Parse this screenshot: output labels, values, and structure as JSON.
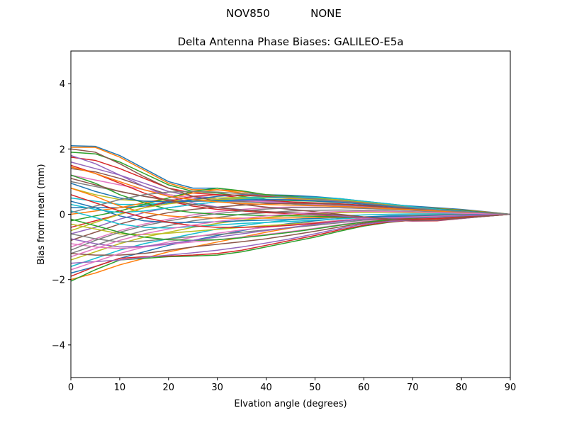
{
  "suptitle": {
    "antenna": "NOV850",
    "radome": "NONE"
  },
  "chart_data": {
    "type": "line",
    "title": "Delta Antenna Phase Biases: GALILEO-E5a",
    "xlabel": "Elvation angle (degrees)",
    "ylabel": "Bias from mean (mm)",
    "xlim": [
      0,
      90
    ],
    "ylim": [
      -5,
      5
    ],
    "xticks": [
      0,
      10,
      20,
      30,
      40,
      50,
      60,
      70,
      80,
      90
    ],
    "yticks": [
      -4,
      -2,
      0,
      2,
      4
    ],
    "ytick_labels": [
      "−4",
      "−2",
      "0",
      "2",
      "4"
    ],
    "grid": false,
    "legend": "none",
    "x": [
      0,
      5,
      10,
      15,
      20,
      25,
      30,
      35,
      40,
      45,
      50,
      55,
      60,
      65,
      70,
      75,
      80,
      85,
      90
    ],
    "colors": [
      "#1f77b4",
      "#ff7f0e",
      "#2ca02c",
      "#d62728",
      "#9467bd",
      "#8c564b",
      "#e377c2",
      "#7f7f7f",
      "#bcbd22",
      "#17becf"
    ],
    "series": [
      {
        "values": [
          2.1,
          2.08,
          1.8,
          1.4,
          1.0,
          0.8,
          0.8,
          0.7,
          0.55,
          0.5,
          0.45,
          0.4,
          0.35,
          0.3,
          0.25,
          0.2,
          0.15,
          0.08,
          0.0
        ]
      },
      {
        "values": [
          2.05,
          2.05,
          1.75,
          1.35,
          0.95,
          0.75,
          0.75,
          0.65,
          0.52,
          0.48,
          0.43,
          0.38,
          0.33,
          0.28,
          0.23,
          0.18,
          0.13,
          0.07,
          0.0
        ]
      },
      {
        "values": [
          1.9,
          1.85,
          1.6,
          1.25,
          0.9,
          0.7,
          0.65,
          0.55,
          0.45,
          0.42,
          0.4,
          0.36,
          0.32,
          0.27,
          0.22,
          0.17,
          0.12,
          0.06,
          0.0
        ]
      },
      {
        "values": [
          1.75,
          1.65,
          1.4,
          1.1,
          0.8,
          0.65,
          0.6,
          0.5,
          0.42,
          0.38,
          0.35,
          0.32,
          0.28,
          0.24,
          0.2,
          0.15,
          0.1,
          0.05,
          0.0
        ]
      },
      {
        "values": [
          1.6,
          1.4,
          1.2,
          0.95,
          0.7,
          0.55,
          0.5,
          0.45,
          0.4,
          0.35,
          0.3,
          0.27,
          0.24,
          0.2,
          0.17,
          0.13,
          0.09,
          0.05,
          0.0
        ]
      },
      {
        "values": [
          1.4,
          1.3,
          1.1,
          0.85,
          0.6,
          0.5,
          0.45,
          0.4,
          0.35,
          0.32,
          0.28,
          0.25,
          0.22,
          0.18,
          0.15,
          0.12,
          0.08,
          0.04,
          0.0
        ]
      },
      {
        "values": [
          1.2,
          1.05,
          0.9,
          0.75,
          0.6,
          0.5,
          0.45,
          0.42,
          0.38,
          0.34,
          0.3,
          0.26,
          0.22,
          0.19,
          0.15,
          0.12,
          0.08,
          0.04,
          0.0
        ]
      },
      {
        "values": [
          1.0,
          0.85,
          0.7,
          0.55,
          0.45,
          0.4,
          0.4,
          0.38,
          0.35,
          0.32,
          0.28,
          0.25,
          0.21,
          0.17,
          0.14,
          0.11,
          0.07,
          0.04,
          0.0
        ]
      },
      {
        "values": [
          0.8,
          0.6,
          0.45,
          0.4,
          0.4,
          0.45,
          0.5,
          0.52,
          0.52,
          0.5,
          0.45,
          0.4,
          0.33,
          0.26,
          0.2,
          0.14,
          0.09,
          0.04,
          0.0
        ]
      },
      {
        "values": [
          0.5,
          0.4,
          0.3,
          0.3,
          0.35,
          0.4,
          0.45,
          0.5,
          0.55,
          0.55,
          0.52,
          0.46,
          0.38,
          0.3,
          0.22,
          0.15,
          0.09,
          0.04,
          0.0
        ]
      },
      {
        "values": [
          0.2,
          0.2,
          0.2,
          0.25,
          0.35,
          0.45,
          0.55,
          0.6,
          0.6,
          0.58,
          0.54,
          0.48,
          0.4,
          0.32,
          0.24,
          0.16,
          0.1,
          0.05,
          0.0
        ]
      },
      {
        "values": [
          0.0,
          0.1,
          0.2,
          0.35,
          0.5,
          0.65,
          0.75,
          0.7,
          0.6,
          0.55,
          0.5,
          0.44,
          0.36,
          0.28,
          0.2,
          0.14,
          0.08,
          0.04,
          0.0
        ]
      },
      {
        "values": [
          -0.2,
          -0.05,
          0.1,
          0.3,
          0.5,
          0.7,
          0.8,
          0.72,
          0.6,
          0.55,
          0.5,
          0.43,
          0.35,
          0.27,
          0.2,
          0.13,
          0.08,
          0.04,
          0.0
        ]
      },
      {
        "values": [
          -0.4,
          -0.2,
          0.0,
          0.2,
          0.4,
          0.55,
          0.6,
          0.58,
          0.55,
          0.52,
          0.48,
          0.42,
          0.35,
          0.27,
          0.19,
          0.13,
          0.08,
          0.04,
          0.0
        ]
      },
      {
        "values": [
          -0.6,
          -0.4,
          -0.15,
          0.05,
          0.2,
          0.3,
          0.38,
          0.42,
          0.45,
          0.45,
          0.42,
          0.38,
          0.32,
          0.25,
          0.18,
          0.12,
          0.07,
          0.03,
          0.0
        ]
      },
      {
        "values": [
          -0.8,
          -0.55,
          -0.3,
          -0.1,
          0.05,
          0.15,
          0.22,
          0.28,
          0.32,
          0.34,
          0.33,
          0.3,
          0.26,
          0.21,
          0.16,
          0.11,
          0.06,
          0.03,
          0.0
        ]
      },
      {
        "values": [
          -1.0,
          -0.75,
          -0.5,
          -0.3,
          -0.15,
          -0.02,
          0.08,
          0.15,
          0.2,
          0.22,
          0.22,
          0.2,
          0.18,
          0.15,
          0.12,
          0.08,
          0.05,
          0.02,
          0.0
        ]
      },
      {
        "values": [
          -1.2,
          -0.95,
          -0.7,
          -0.5,
          -0.35,
          -0.2,
          -0.1,
          0.0,
          0.05,
          0.1,
          0.12,
          0.13,
          0.12,
          0.1,
          0.08,
          0.06,
          0.04,
          0.02,
          0.0
        ]
      },
      {
        "values": [
          -1.4,
          -1.15,
          -0.9,
          -0.7,
          -0.55,
          -0.4,
          -0.28,
          -0.18,
          -0.1,
          -0.03,
          0.02,
          0.05,
          0.06,
          0.06,
          0.05,
          0.04,
          0.03,
          0.01,
          0.0
        ]
      },
      {
        "values": [
          -1.6,
          -1.35,
          -1.1,
          -0.9,
          -0.75,
          -0.6,
          -0.45,
          -0.35,
          -0.25,
          -0.17,
          -0.1,
          -0.05,
          -0.02,
          0.0,
          0.01,
          0.01,
          0.01,
          0.0,
          0.0
        ]
      },
      {
        "values": [
          -1.8,
          -1.6,
          -1.35,
          -1.15,
          -0.95,
          -0.8,
          -0.65,
          -0.5,
          -0.38,
          -0.28,
          -0.2,
          -0.13,
          -0.08,
          -0.05,
          -0.03,
          -0.02,
          -0.01,
          0.0,
          0.0
        ]
      },
      {
        "values": [
          -2.0,
          -1.8,
          -1.55,
          -1.35,
          -1.15,
          -1.0,
          -0.85,
          -0.7,
          -0.55,
          -0.42,
          -0.3,
          -0.2,
          -0.13,
          -0.08,
          -0.05,
          -0.03,
          -0.02,
          -0.01,
          0.0
        ]
      },
      {
        "values": [
          -2.05,
          -1.7,
          -1.4,
          -1.35,
          -1.3,
          -1.28,
          -1.25,
          -1.15,
          -1.0,
          -0.85,
          -0.7,
          -0.52,
          -0.36,
          -0.25,
          -0.18,
          -0.12,
          -0.07,
          -0.03,
          0.0
        ]
      },
      {
        "values": [
          -1.9,
          -1.6,
          -1.35,
          -1.3,
          -1.28,
          -1.25,
          -1.2,
          -1.1,
          -0.95,
          -0.8,
          -0.65,
          -0.48,
          -0.34,
          -0.24,
          -0.18,
          -0.12,
          -0.07,
          -0.03,
          0.0
        ]
      },
      {
        "values": [
          -1.5,
          -1.45,
          -1.4,
          -1.32,
          -1.25,
          -1.18,
          -1.1,
          -1.0,
          -0.88,
          -0.75,
          -0.6,
          -0.44,
          -0.3,
          -0.22,
          -0.18,
          -0.13,
          -0.08,
          -0.04,
          0.0
        ]
      },
      {
        "values": [
          -1.2,
          -1.25,
          -1.25,
          -1.2,
          -1.1,
          -1.0,
          -0.92,
          -0.84,
          -0.75,
          -0.64,
          -0.52,
          -0.39,
          -0.27,
          -0.19,
          -0.15,
          -0.11,
          -0.07,
          -0.03,
          0.0
        ]
      },
      {
        "values": [
          -0.9,
          -1.0,
          -1.05,
          -1.0,
          -0.92,
          -0.85,
          -0.78,
          -0.7,
          -0.62,
          -0.53,
          -0.43,
          -0.32,
          -0.22,
          -0.17,
          -0.13,
          -0.1,
          -0.06,
          -0.03,
          0.0
        ]
      },
      {
        "values": [
          -0.6,
          -0.75,
          -0.85,
          -0.82,
          -0.75,
          -0.68,
          -0.62,
          -0.55,
          -0.48,
          -0.41,
          -0.34,
          -0.26,
          -0.18,
          -0.14,
          -0.11,
          -0.08,
          -0.05,
          -0.02,
          0.0
        ]
      },
      {
        "values": [
          -0.3,
          -0.45,
          -0.6,
          -0.62,
          -0.58,
          -0.52,
          -0.46,
          -0.4,
          -0.35,
          -0.3,
          -0.25,
          -0.19,
          -0.14,
          -0.11,
          -0.09,
          -0.07,
          -0.04,
          -0.02,
          0.0
        ]
      },
      {
        "values": [
          0.1,
          -0.1,
          -0.3,
          -0.4,
          -0.42,
          -0.38,
          -0.33,
          -0.28,
          -0.25,
          -0.22,
          -0.18,
          -0.14,
          -0.1,
          -0.08,
          -0.07,
          -0.05,
          -0.03,
          -0.01,
          0.0
        ]
      },
      {
        "values": [
          0.4,
          0.2,
          -0.05,
          -0.2,
          -0.25,
          -0.25,
          -0.23,
          -0.2,
          -0.18,
          -0.16,
          -0.13,
          -0.1,
          -0.08,
          -0.07,
          -0.06,
          -0.04,
          -0.03,
          -0.01,
          0.0
        ]
      },
      {
        "values": [
          0.8,
          0.55,
          0.25,
          0.05,
          -0.05,
          -0.1,
          -0.12,
          -0.12,
          -0.12,
          -0.11,
          -0.1,
          -0.09,
          -0.1,
          -0.14,
          -0.17,
          -0.15,
          -0.1,
          -0.05,
          0.0
        ]
      },
      {
        "values": [
          1.2,
          0.95,
          0.6,
          0.35,
          0.15,
          0.05,
          0.0,
          -0.02,
          -0.04,
          -0.05,
          -0.06,
          -0.08,
          -0.12,
          -0.17,
          -0.2,
          -0.18,
          -0.12,
          -0.06,
          0.0
        ]
      },
      {
        "values": [
          1.5,
          1.25,
          0.95,
          0.65,
          0.4,
          0.25,
          0.15,
          0.1,
          0.05,
          0.02,
          -0.02,
          -0.06,
          -0.12,
          -0.18,
          -0.21,
          -0.2,
          -0.13,
          -0.06,
          0.0
        ]
      },
      {
        "values": [
          1.8,
          1.55,
          1.2,
          0.85,
          0.55,
          0.35,
          0.22,
          0.14,
          0.08,
          0.04,
          0.0,
          -0.05,
          -0.11,
          -0.17,
          -0.2,
          -0.19,
          -0.13,
          -0.06,
          0.0
        ]
      },
      {
        "values": [
          2.0,
          1.9,
          1.55,
          1.15,
          0.8,
          0.55,
          0.4,
          0.3,
          0.22,
          0.15,
          0.08,
          0.0,
          -0.08,
          -0.15,
          -0.19,
          -0.18,
          -0.12,
          -0.06,
          0.0
        ]
      },
      {
        "values": [
          -1.7,
          -1.45,
          -1.2,
          -1.0,
          -0.85,
          -0.7,
          -0.58,
          -0.48,
          -0.4,
          -0.33,
          -0.26,
          -0.19,
          -0.13,
          -0.1,
          -0.08,
          -0.06,
          -0.04,
          -0.02,
          0.0
        ]
      },
      {
        "values": [
          -1.1,
          -0.8,
          -0.55,
          -0.35,
          -0.2,
          -0.08,
          0.02,
          0.1,
          0.16,
          0.2,
          0.21,
          0.2,
          0.18,
          0.15,
          0.12,
          0.09,
          0.06,
          0.03,
          0.0
        ]
      },
      {
        "values": [
          -0.5,
          -0.25,
          0.0,
          0.2,
          0.32,
          0.4,
          0.45,
          0.48,
          0.5,
          0.5,
          0.48,
          0.44,
          0.38,
          0.3,
          0.22,
          0.15,
          0.09,
          0.04,
          0.0
        ]
      },
      {
        "values": [
          0.3,
          0.15,
          0.05,
          0.1,
          0.2,
          0.3,
          0.38,
          0.45,
          0.5,
          0.52,
          0.52,
          0.48,
          0.4,
          0.32,
          0.23,
          0.15,
          0.09,
          0.04,
          0.0
        ]
      },
      {
        "values": [
          0.95,
          0.7,
          0.5,
          0.4,
          0.38,
          0.4,
          0.42,
          0.44,
          0.45,
          0.44,
          0.41,
          0.37,
          0.31,
          0.25,
          0.19,
          0.13,
          0.08,
          0.04,
          0.0
        ]
      },
      {
        "values": [
          1.45,
          1.25,
          1.0,
          0.75,
          0.55,
          0.45,
          0.38,
          0.33,
          0.3,
          0.28,
          0.26,
          0.24,
          0.21,
          0.17,
          0.14,
          0.1,
          0.07,
          0.03,
          0.0
        ]
      },
      {
        "values": [
          -0.15,
          -0.35,
          -0.55,
          -0.7,
          -0.78,
          -0.8,
          -0.78,
          -0.72,
          -0.64,
          -0.55,
          -0.45,
          -0.34,
          -0.24,
          -0.17,
          -0.12,
          -0.09,
          -0.06,
          -0.03,
          0.0
        ]
      },
      {
        "values": [
          0.6,
          0.35,
          0.1,
          -0.1,
          -0.25,
          -0.35,
          -0.4,
          -0.4,
          -0.38,
          -0.34,
          -0.28,
          -0.21,
          -0.15,
          -0.14,
          -0.15,
          -0.13,
          -0.09,
          -0.04,
          0.0
        ]
      },
      {
        "values": [
          -0.75,
          -0.9,
          -1.0,
          -0.98,
          -0.9,
          -0.8,
          -0.7,
          -0.6,
          -0.5,
          -0.4,
          -0.31,
          -0.22,
          -0.15,
          -0.12,
          -0.1,
          -0.08,
          -0.05,
          -0.02,
          0.0
        ]
      },
      {
        "values": [
          1.1,
          0.9,
          0.7,
          0.55,
          0.42,
          0.3,
          0.2,
          0.13,
          0.08,
          0.05,
          0.02,
          -0.02,
          -0.08,
          -0.14,
          -0.18,
          -0.17,
          -0.11,
          -0.05,
          0.0
        ]
      },
      {
        "values": [
          -1.3,
          -1.05,
          -0.8,
          -0.6,
          -0.45,
          -0.33,
          -0.22,
          -0.13,
          -0.05,
          0.01,
          0.06,
          0.08,
          0.09,
          0.08,
          0.07,
          0.05,
          0.03,
          0.02,
          0.0
        ]
      },
      {
        "values": [
          0.05,
          0.25,
          0.45,
          0.6,
          0.68,
          0.7,
          0.68,
          0.63,
          0.57,
          0.52,
          0.47,
          0.41,
          0.34,
          0.27,
          0.2,
          0.13,
          0.08,
          0.04,
          0.0
        ]
      }
    ]
  }
}
